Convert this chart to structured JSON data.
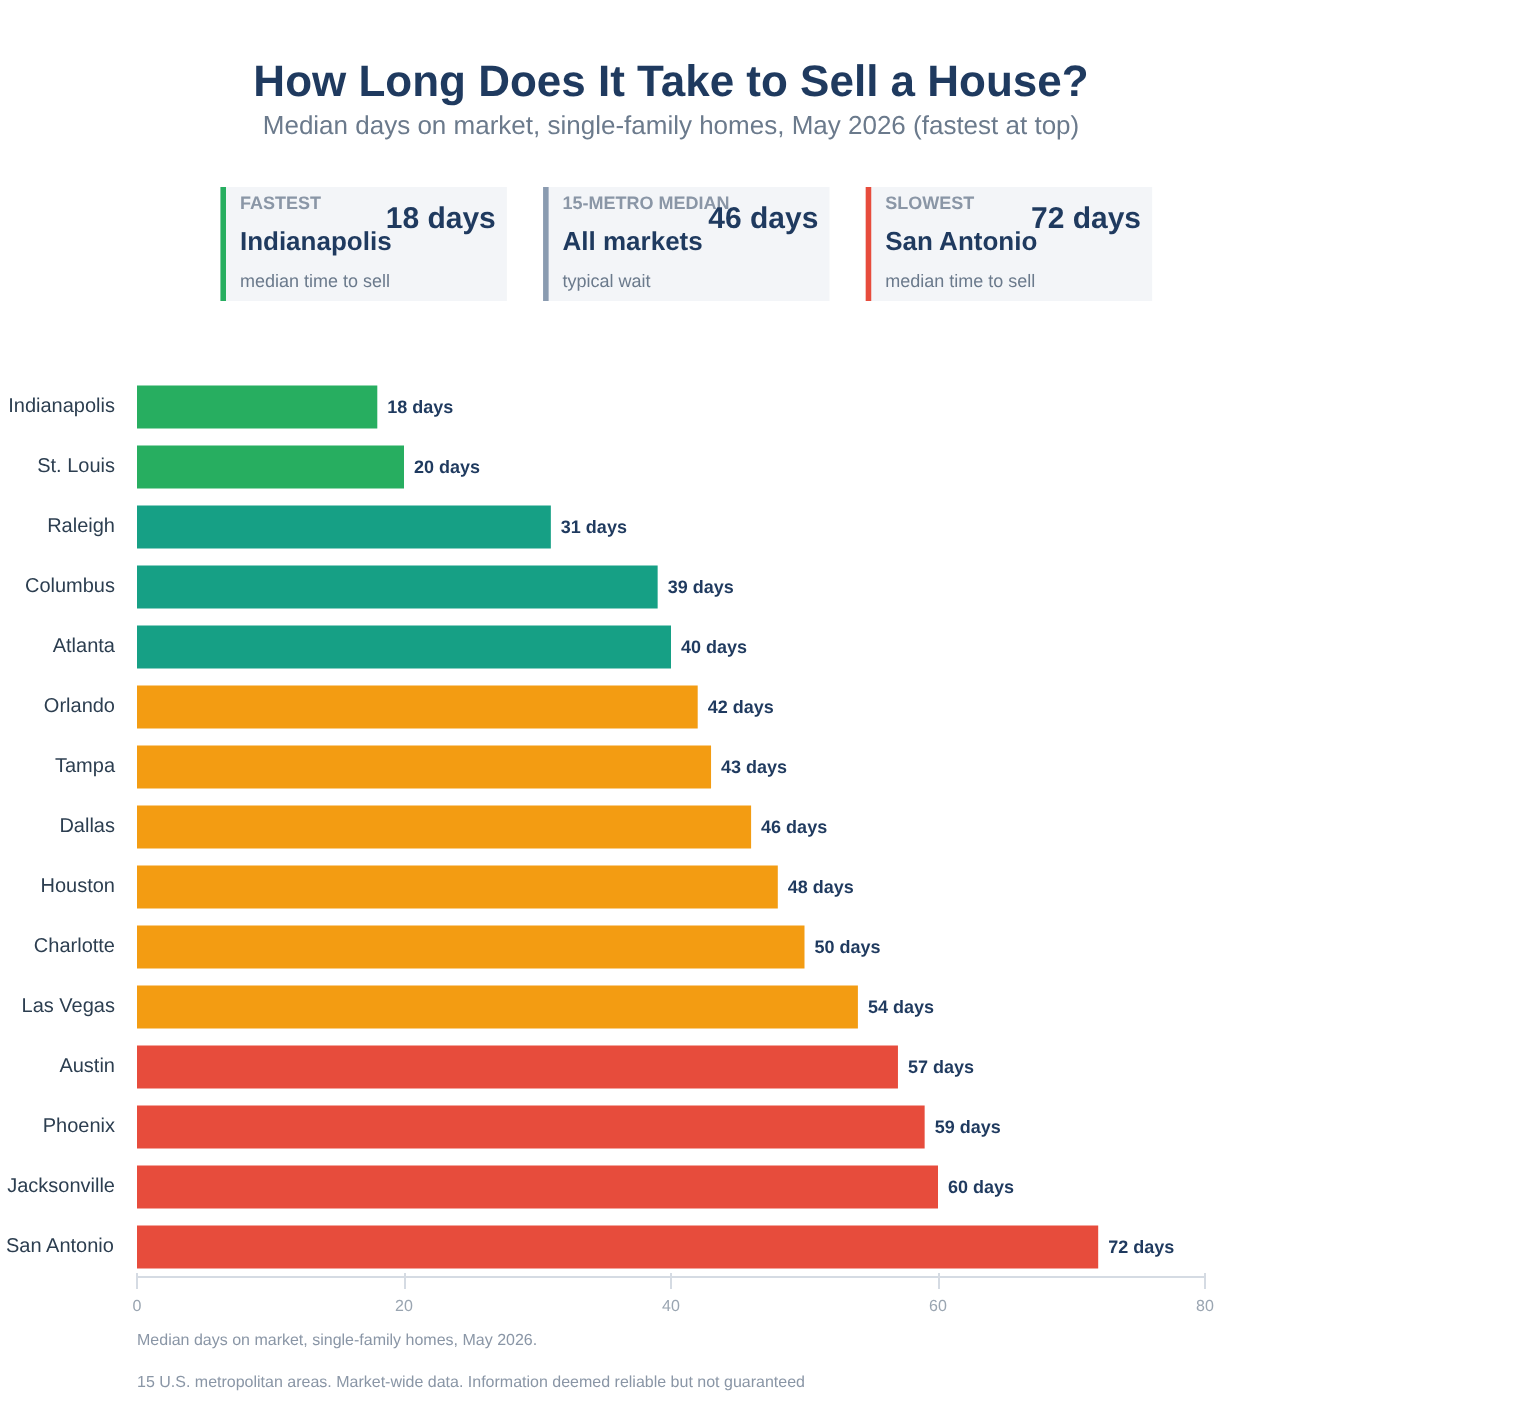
{
  "chart_data": [
    {
      "type": "other",
      "title": "How Long Does It Take to Sell a House?",
      "subtitle": "Median days on market, single-family homes, May 2026 (fastest at top)",
      "annotations": [
        "FASTEST",
        "Indianapolis",
        "median time to sell",
        "18 days",
        "15-METRO MEDIAN",
        "All markets",
        "typical wait",
        "46 days",
        "SLOWEST",
        "San Antonio",
        "median time to sell",
        "72 days"
      ],
      "colors": [
        "#27ae60",
        "#8a9bb0",
        "#e74c3c"
      ]
    },
    {
      "type": "bar",
      "orientation": "horizontal",
      "categories": [
        "Indianapolis",
        "St. Louis",
        "Raleigh",
        "Columbus",
        "Atlanta",
        "Orlando",
        "Tampa",
        "Dallas",
        "Houston",
        "Charlotte",
        "Las Vegas",
        "Austin",
        "Phoenix",
        "Jacksonville",
        "San Antonio"
      ],
      "values": [
        18,
        20,
        31,
        39,
        40,
        42,
        43,
        46,
        48,
        50,
        54,
        57,
        59,
        60,
        72
      ],
      "colors": [
        "#27ae60",
        "#27ae60",
        "#16a085",
        "#16a085",
        "#16a085",
        "#f39c12",
        "#f39c12",
        "#f39c12",
        "#f39c12",
        "#f39c12",
        "#f39c12",
        "#e74c3c",
        "#e74c3c",
        "#e74c3c",
        "#e74c3c"
      ],
      "value_labels": [
        "18 days",
        "20 days",
        "31 days",
        "39 days",
        "40 days",
        "42 days",
        "43 days",
        "46 days",
        "48 days",
        "50 days",
        "54 days",
        "57 days",
        "59 days",
        "60 days",
        "72 days"
      ],
      "xlim": [
        0,
        80
      ],
      "xticks": [
        0,
        20,
        40,
        60,
        80
      ],
      "grid": false,
      "annotations": [
        "Median days on market, single-family homes, May 2026.",
        "15 U.S. metropolitan areas. Market-wide data. Information deemed reliable but not guaranteed"
      ]
    }
  ]
}
